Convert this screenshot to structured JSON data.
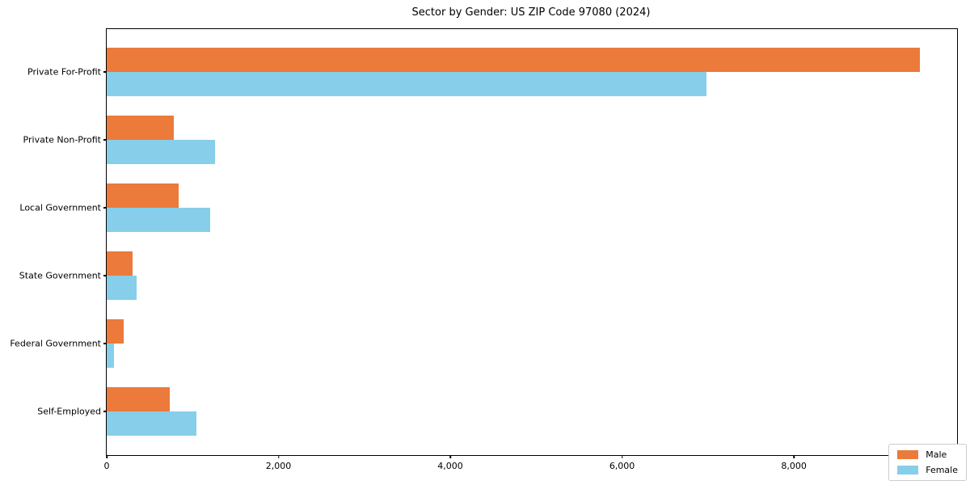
{
  "chart_data": {
    "type": "bar",
    "orientation": "horizontal",
    "title": "Sector by Gender: US ZIP Code 97080 (2024)",
    "categories": [
      "Private For-Profit",
      "Private Non-Profit",
      "Local Government",
      "State Government",
      "Federal Government",
      "Self-Employed"
    ],
    "series": [
      {
        "name": "Male",
        "color": "#EB7A3B",
        "values": [
          9470,
          780,
          840,
          300,
          200,
          730
        ]
      },
      {
        "name": "Female",
        "color": "#87CEEB",
        "values": [
          6980,
          1260,
          1200,
          350,
          80,
          1040
        ]
      }
    ],
    "x_ticks": [
      0,
      2000,
      4000,
      6000,
      8000
    ],
    "x_tick_labels": [
      "0",
      "2,000",
      "4,000",
      "6,000",
      "8,000"
    ],
    "xlim": [
      0,
      9900
    ],
    "xlabel": "",
    "ylabel": "",
    "grid": false,
    "legend": {
      "position": "lower right",
      "entries": [
        "Male",
        "Female"
      ]
    }
  }
}
